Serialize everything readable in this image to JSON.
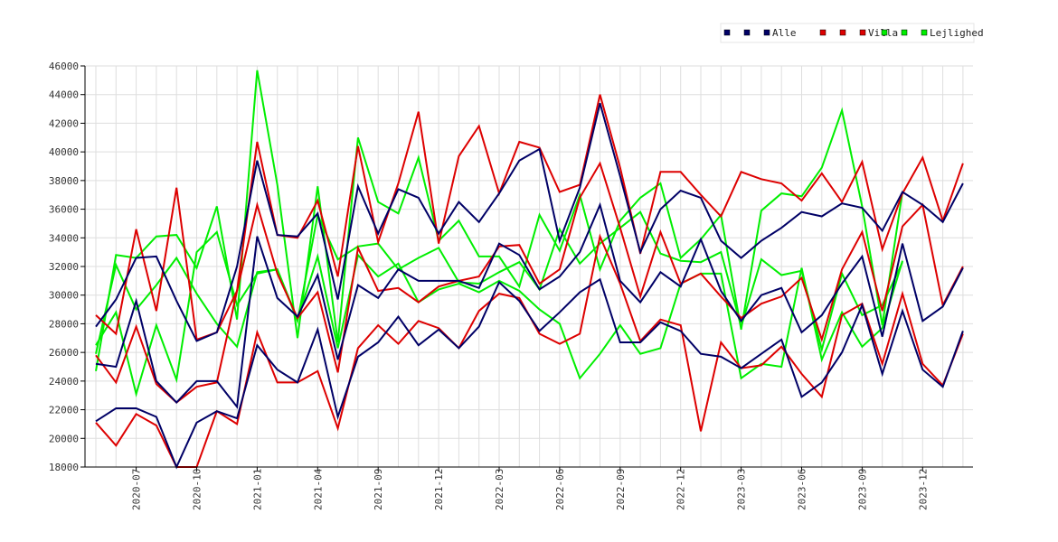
{
  "chart_data": {
    "type": "line",
    "ylim": [
      18000,
      46000
    ],
    "yticks": [
      18000,
      20000,
      22000,
      24000,
      26000,
      28000,
      30000,
      32000,
      34000,
      36000,
      38000,
      40000,
      42000,
      44000,
      46000
    ],
    "x_tick_labels": [
      "2020-07",
      "2020-10",
      "2021-01",
      "2021-04",
      "2021-09",
      "2021-12",
      "2022-03",
      "2022-06",
      "2022-09",
      "2022-12",
      "2023-03",
      "2023-06",
      "2023-09",
      "2023-12"
    ],
    "x_tick_positions": [
      2,
      5,
      8,
      11,
      14,
      17,
      20,
      23,
      26,
      29,
      32,
      35,
      38,
      41
    ],
    "x_count": 44,
    "grid": true,
    "legend_position": "top-right",
    "legend": [
      {
        "name": "Alle",
        "color": "#000066"
      },
      {
        "name": "Villa",
        "color": "#dd0000"
      },
      {
        "name": "Lejlighed",
        "color": "#00ee00"
      }
    ],
    "series": [
      {
        "group": "Alle",
        "color": "#000066",
        "values": [
          27800,
          29700,
          32600,
          32700,
          29600,
          26800,
          27400,
          32000,
          39400,
          34200,
          34100,
          35700,
          29700,
          37600,
          34300,
          37400,
          36800,
          34300,
          36500,
          35100,
          37100,
          39400,
          40200,
          33800,
          37500,
          43400,
          38300,
          33000,
          36000,
          37300,
          36800,
          33800,
          32600,
          33800,
          34700,
          35800,
          35500,
          36400,
          36100,
          34500,
          37200,
          36300,
          35100,
          37800
        ]
      },
      {
        "group": "Alle",
        "color": "#000066",
        "values": [
          25200,
          25000,
          29600,
          24000,
          22500,
          24000,
          24000,
          22200,
          34100,
          29800,
          28500,
          31400,
          25500,
          30700,
          29800,
          31800,
          31000,
          31000,
          31000,
          30500,
          33600,
          32800,
          30400,
          31300,
          33000,
          36300,
          31000,
          29500,
          31600,
          30600,
          33900,
          30300,
          28200,
          30000,
          30500,
          27400,
          28600,
          30800,
          32700,
          27100,
          33600,
          28200,
          29200,
          31900
        ]
      },
      {
        "group": "Alle",
        "color": "#000066",
        "values": [
          21200,
          22100,
          22100,
          21500,
          18000,
          21100,
          21900,
          21400,
          26500,
          24800,
          23900,
          27600,
          21500,
          25700,
          26700,
          28500,
          26500,
          27600,
          26300,
          27800,
          30900,
          29600,
          27500,
          28800,
          30200,
          31100,
          26700,
          26700,
          28100,
          27500,
          25900,
          25700,
          24900,
          25900,
          26900,
          22900,
          23900,
          26000,
          29300,
          24500,
          28900,
          24800,
          23600,
          27500
        ]
      },
      {
        "group": "Villa",
        "color": "#dd0000",
        "values": [
          28600,
          27300,
          34600,
          28900,
          37500,
          26900,
          27400,
          30300,
          40700,
          34200,
          34000,
          36600,
          31300,
          40400,
          33700,
          37800,
          42800,
          33600,
          39700,
          41800,
          37100,
          40700,
          40300,
          37200,
          37700,
          44000,
          38900,
          32900,
          38600,
          38600,
          37000,
          35500,
          38600,
          38100,
          37800,
          36600,
          38500,
          36500,
          39300,
          33200,
          37100,
          39600,
          35200,
          39200
        ]
      },
      {
        "group": "Villa",
        "color": "#dd0000",
        "values": [
          25800,
          23900,
          27800,
          23800,
          22500,
          23600,
          23900,
          30300,
          36300,
          31500,
          28400,
          30200,
          24600,
          33300,
          30300,
          30500,
          29500,
          30600,
          31000,
          31300,
          33400,
          33500,
          30800,
          31800,
          36800,
          39200,
          34700,
          29900,
          34400,
          30800,
          31500,
          29900,
          28400,
          29400,
          29900,
          31200,
          26900,
          31800,
          34400,
          28900,
          34800,
          36300,
          29300,
          32000
        ]
      },
      {
        "group": "Villa",
        "color": "#dd0000",
        "values": [
          21100,
          19500,
          21700,
          20900,
          18000,
          17800,
          21900,
          21000,
          27400,
          23900,
          23900,
          24700,
          20700,
          26300,
          27900,
          26600,
          28200,
          27700,
          26300,
          28900,
          30100,
          29800,
          27300,
          26600,
          27300,
          34100,
          30800,
          26800,
          28300,
          27900,
          20500,
          26700,
          24900,
          25100,
          26400,
          24500,
          22900,
          28600,
          29400,
          25200,
          30100,
          25200,
          23700,
          27300
        ]
      },
      {
        "group": "Lejlighed",
        "color": "#00ee00",
        "values": [
          24700,
          32800,
          32600,
          34100,
          34200,
          31900,
          36200,
          28300,
          45700,
          37700,
          27000,
          37600,
          26700,
          41000,
          36500,
          35700,
          39600,
          33800,
          35200,
          32700,
          32700,
          30600,
          35600,
          33100,
          37000,
          31800,
          35200,
          36800,
          37800,
          32600,
          33900,
          35600,
          27600,
          35900,
          37100,
          36900,
          38900,
          42900,
          36200,
          27900,
          37200,
          null,
          null,
          null
        ]
      },
      {
        "group": "Lejlighed",
        "color": "#00ee00",
        "values": [
          25900,
          32100,
          29000,
          30700,
          32600,
          30100,
          28000,
          26400,
          31600,
          31800,
          28200,
          35600,
          32500,
          33400,
          33600,
          31800,
          32600,
          33300,
          30900,
          30800,
          31600,
          32300,
          30400,
          34600,
          32200,
          33600,
          34700,
          35800,
          32900,
          32400,
          32300,
          33000,
          27800,
          32500,
          31400,
          31700,
          26200,
          31500,
          28600,
          29300,
          32300,
          null,
          null,
          null
        ]
      },
      {
        "group": "Lejlighed",
        "color": "#00ee00",
        "values": [
          26500,
          28800,
          23100,
          27900,
          24100,
          33000,
          34400,
          29300,
          31500,
          31800,
          28300,
          32700,
          26300,
          32800,
          31300,
          32200,
          29500,
          30400,
          30800,
          30200,
          31000,
          30300,
          29000,
          28000,
          24200,
          25900,
          27900,
          25900,
          26300,
          30800,
          31500,
          31500,
          24200,
          25200,
          25000,
          31900,
          25500,
          28800,
          26400,
          27700,
          32400,
          null,
          null,
          null
        ]
      }
    ]
  }
}
